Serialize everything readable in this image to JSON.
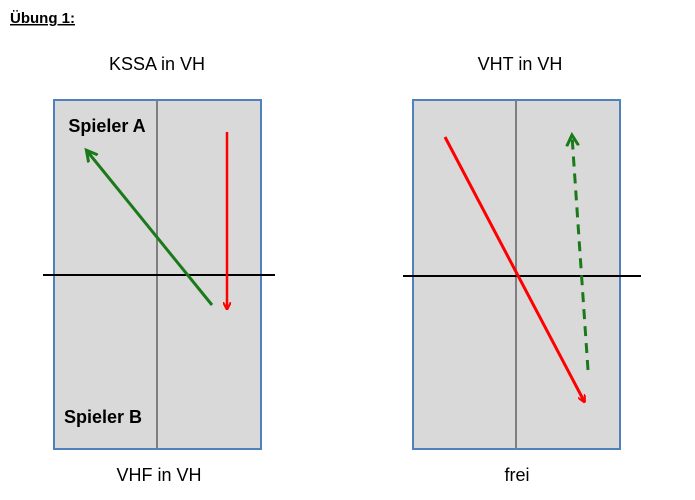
{
  "header": {
    "title": "Übung 1:"
  },
  "panels": [
    {
      "title": "KSSA in VH",
      "top_label": "Spieler A",
      "bottom_label": "Spieler B",
      "caption": "VHF in VH"
    },
    {
      "title": "VHT in VH",
      "caption": "frei"
    }
  ]
}
